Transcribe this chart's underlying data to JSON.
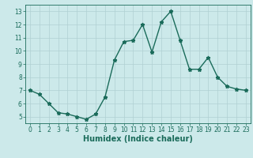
{
  "x": [
    0,
    1,
    2,
    3,
    4,
    5,
    6,
    7,
    8,
    9,
    10,
    11,
    12,
    13,
    14,
    15,
    16,
    17,
    18,
    19,
    20,
    21,
    22,
    23
  ],
  "y": [
    7.0,
    6.7,
    6.0,
    5.3,
    5.2,
    5.0,
    4.8,
    5.2,
    6.5,
    9.3,
    10.7,
    10.8,
    12.0,
    9.9,
    12.2,
    13.0,
    10.8,
    8.6,
    8.6,
    9.5,
    8.0,
    7.3,
    7.1,
    7.0
  ],
  "line_color": "#1a6b5a",
  "marker": "*",
  "marker_size": 3.5,
  "bg_color": "#cce9ea",
  "grid_color": "#b0d0d2",
  "xlabel": "Humidex (Indice chaleur)",
  "ylim": [
    4.5,
    13.5
  ],
  "xlim": [
    -0.5,
    23.5
  ],
  "yticks": [
    5,
    6,
    7,
    8,
    9,
    10,
    11,
    12,
    13
  ],
  "xticks": [
    0,
    1,
    2,
    3,
    4,
    5,
    6,
    7,
    8,
    9,
    10,
    11,
    12,
    13,
    14,
    15,
    16,
    17,
    18,
    19,
    20,
    21,
    22,
    23
  ],
  "tick_fontsize": 5.5,
  "label_fontsize": 7.0,
  "linewidth": 1.0
}
